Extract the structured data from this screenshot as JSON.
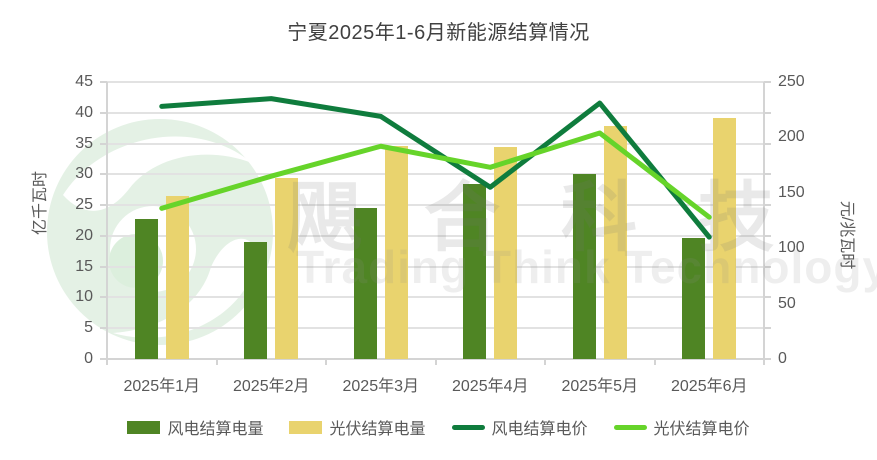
{
  "title": "宁夏2025年1-6月新能源结算情况",
  "chart_data": {
    "type": "combo-bar-line",
    "title": "宁夏2025年1-6月新能源结算情况",
    "categories": [
      "2025年1月",
      "2025年2月",
      "2025年3月",
      "2025年4月",
      "2025年5月",
      "2025年6月"
    ],
    "series": [
      {
        "name": "风电结算电量",
        "type": "bar",
        "axis": "left",
        "color": "#4f8524",
        "values": [
          22.7,
          19.0,
          24.5,
          28.5,
          30.0,
          19.7
        ]
      },
      {
        "name": "光伏结算电量",
        "type": "bar",
        "axis": "left",
        "color": "#e9d36e",
        "values": [
          26.5,
          29.4,
          34.6,
          34.5,
          37.9,
          39.1
        ]
      },
      {
        "name": "风电结算电价",
        "type": "line",
        "axis": "right",
        "color": "#0f7c3d",
        "values": [
          228,
          235,
          219,
          155,
          231,
          110
        ]
      },
      {
        "name": "光伏结算电价",
        "type": "line",
        "axis": "right",
        "color": "#66d42a",
        "values": [
          136,
          165,
          192,
          173,
          204,
          128
        ]
      }
    ],
    "ylabel": "亿千瓦时",
    "y2label": "元/兆瓦时",
    "ylim": [
      0,
      45
    ],
    "ystep": 5,
    "y2lim": [
      0,
      250
    ],
    "y2step": 50,
    "grid": true,
    "legend_position": "bottom"
  },
  "watermark": {
    "logo": "typhoon-swirl-logo",
    "chars": [
      "飓",
      "合",
      "科",
      "技"
    ],
    "english": "Trading Think Technology"
  },
  "colors": {
    "wind_bar": "#4f8524",
    "pv_bar": "#e9d36e",
    "wind_line": "#0f7c3d",
    "pv_line": "#66d42a",
    "title_text": "#404040",
    "axis_text": "#595959",
    "gridline": "#e2e2e2",
    "axis_line": "#d4d4d4",
    "watermark_green": "#e4f1e5"
  }
}
